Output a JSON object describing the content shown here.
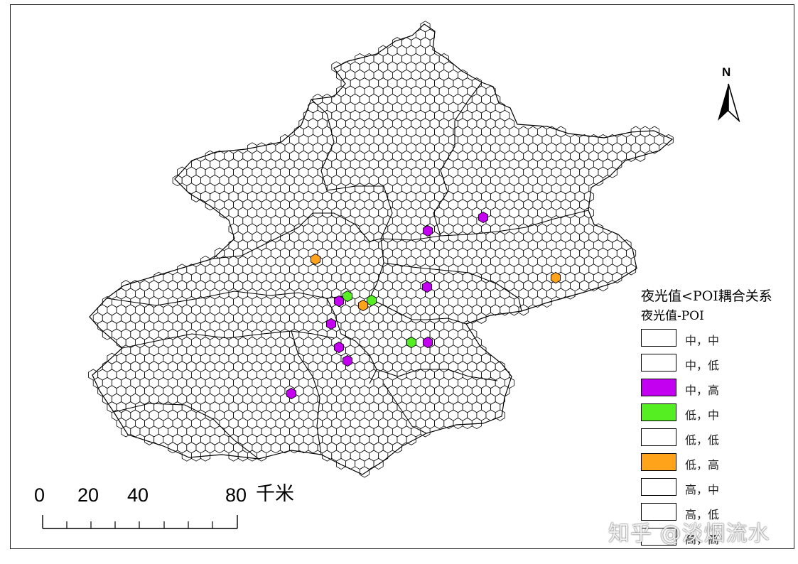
{
  "map": {
    "north_label": "N",
    "colors": {
      "purple": "#c300f0",
      "green": "#55ee22",
      "orange": "#ffa31a",
      "outline": "#000000",
      "background": "#ffffff"
    }
  },
  "legend": {
    "title": "夜光值<POI耦合关系",
    "subtitle": "夜光值-POI",
    "items": [
      {
        "label": "中，中",
        "color": "#ffffff"
      },
      {
        "label": "中，低",
        "color": "#ffffff"
      },
      {
        "label": "中，高",
        "color": "#c300f0"
      },
      {
        "label": "低，中",
        "color": "#55ee22"
      },
      {
        "label": "低，低",
        "color": "#ffffff"
      },
      {
        "label": "低，高",
        "color": "#ffa31a"
      },
      {
        "label": "高，中",
        "color": "#ffffff"
      },
      {
        "label": "高，低",
        "color": "#ffffff"
      },
      {
        "label": "高，高",
        "color": "#ffffff"
      }
    ]
  },
  "scale": {
    "labels": [
      "0",
      "20",
      "40",
      "80"
    ],
    "unit": "千米"
  },
  "watermark": "知乎 @淡烟流水"
}
